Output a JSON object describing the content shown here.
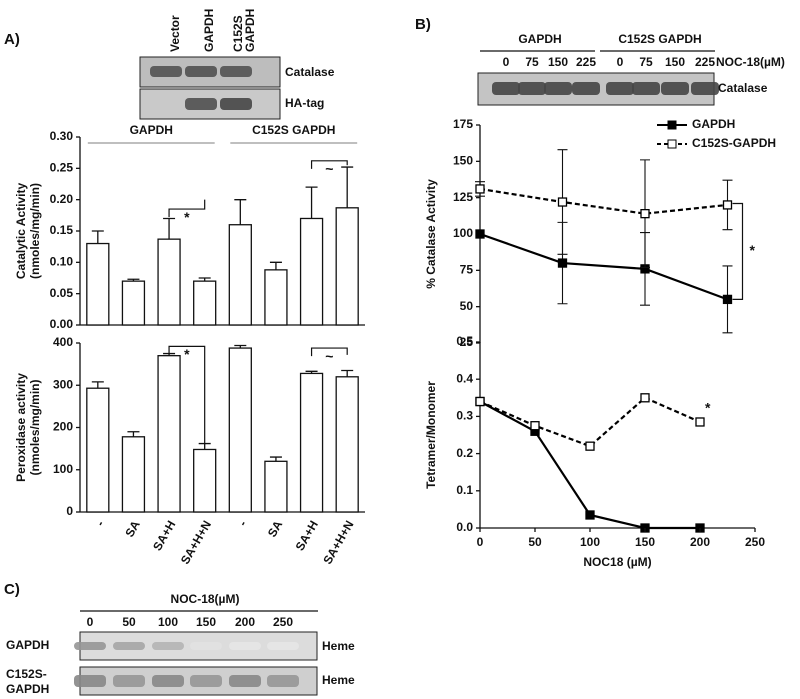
{
  "panel_labels": [
    "A)",
    "B)",
    "C)"
  ],
  "blot_a": {
    "lanes": [
      "Vector",
      "GAPDH",
      [
        "C152S",
        "GAPDH"
      ]
    ],
    "rows": [
      "Catalase",
      "HA-tag"
    ]
  },
  "blot_b": {
    "groups": [
      "GAPDH",
      "C152S GAPDH"
    ],
    "treatment": "NOC-18(µM)",
    "lanes": [
      "0",
      "75",
      "150",
      "225",
      "0",
      "75",
      "150",
      "225"
    ],
    "rows": [
      "Catalase"
    ]
  },
  "blot_c": {
    "treatment": "NOC-18(µM)",
    "lanes": [
      "0",
      "50",
      "100",
      "150",
      "200",
      "250"
    ],
    "rows": [
      [
        "GAPDH"
      ],
      [
        "C152S-",
        "GAPDH"
      ]
    ],
    "row_marks": [
      "Heme",
      "Heme"
    ]
  },
  "chart_data": [
    {
      "type": "bar",
      "ylabel": [
        "Catalytic Activity",
        "(nmoles/mg/min)"
      ],
      "groups": [
        "GAPDH",
        "C152S GAPDH"
      ],
      "values": [
        0.13,
        0.07,
        0.137,
        0.07,
        0.16,
        0.088,
        0.17,
        0.187
      ],
      "errors": [
        0.02,
        0.003,
        0.033,
        0.005,
        0.04,
        0.012,
        0.05,
        0.065
      ],
      "color": "#ffffff",
      "ylim": [
        0,
        0.3
      ],
      "yticks": [
        {
          "value": 0,
          "label": "0.00"
        },
        0.05,
        {
          "value": 0.1,
          "label": "0.10"
        },
        0.15,
        {
          "value": 0.2,
          "label": "0.20"
        },
        0.25,
        {
          "value": 0.3,
          "label": "0.30"
        }
      ],
      "annotations": [
        "*",
        "~"
      ]
    },
    {
      "type": "bar",
      "ylabel": [
        "Peroxidase activity",
        "(nmoles/mg/min)"
      ],
      "categories": [
        "-",
        "SA",
        "SA+H",
        "SA+H+N",
        "-",
        "SA",
        "SA+H",
        "SA+H+N"
      ],
      "values": [
        293,
        178,
        370,
        148,
        388,
        120,
        328,
        320
      ],
      "errors": [
        15,
        12,
        5,
        14,
        6,
        10,
        5,
        15
      ],
      "color": "#ffffff",
      "ylim": [
        0,
        400
      ],
      "yticks": [
        0,
        100,
        200,
        300,
        400
      ],
      "annotations": [
        "*",
        "~"
      ]
    },
    {
      "type": "line",
      "ylabel": "% Catalase Activity",
      "x": [
        0,
        75,
        150,
        225
      ],
      "xlim": [
        0,
        250
      ],
      "ylim": [
        25,
        175
      ],
      "yticks": [
        25,
        50,
        75,
        100,
        125,
        150,
        175
      ],
      "series": [
        {
          "name": "GAPDH",
          "color": "#000000",
          "dashed": false,
          "filled": true,
          "values": [
            100,
            80,
            76,
            55
          ],
          "errors": [
            0,
            28,
            25,
            23
          ]
        },
        {
          "name": "C152S-GAPDH",
          "color": "#000000",
          "dashed": true,
          "filled": false,
          "values": [
            131,
            122,
            114,
            120
          ],
          "errors": [
            5,
            36,
            37,
            17
          ]
        }
      ],
      "legend": "upper right",
      "annotations": [
        "*"
      ]
    },
    {
      "type": "line",
      "ylabel": "Tetramer/Monomer",
      "xlabel": "NOC18 (µM)",
      "x": [
        0,
        50,
        100,
        150,
        200
      ],
      "xlim": [
        0,
        250
      ],
      "xticks": [
        0,
        50,
        100,
        150,
        200,
        250
      ],
      "ylim": [
        0,
        0.5
      ],
      "yticks": [
        {
          "value": 0,
          "label": "0.0"
        },
        0.1,
        0.2,
        0.3,
        0.4,
        0.5
      ],
      "series": [
        {
          "name": "GAPDH",
          "color": "#000000",
          "dashed": false,
          "filled": true,
          "values": [
            0.34,
            0.26,
            0.035,
            0,
            0
          ]
        },
        {
          "name": "C152S-GAPDH",
          "color": "#000000",
          "dashed": true,
          "filled": false,
          "values": [
            0.34,
            0.275,
            0.22,
            0.35,
            0.285
          ]
        }
      ],
      "annotations": [
        "*"
      ]
    }
  ]
}
